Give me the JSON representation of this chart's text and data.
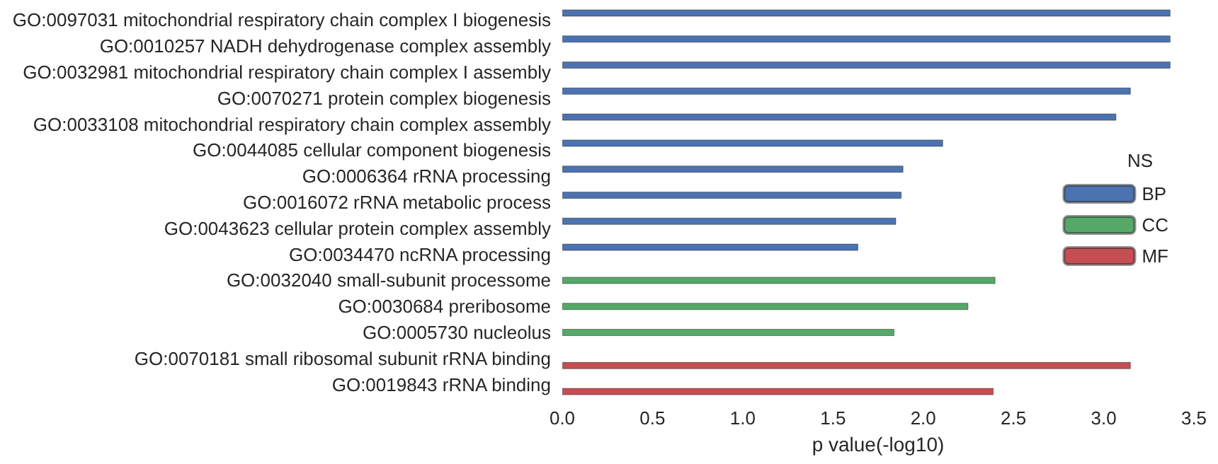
{
  "chart_data": {
    "type": "bar",
    "orientation": "horizontal",
    "xlabel": "p value(-log10)",
    "legend_title": "NS",
    "legend": "right",
    "grid": false,
    "categories": [
      "GO:0097031 mitochondrial respiratory chain complex I biogenesis",
      "GO:0010257 NADH dehydrogenase complex assembly",
      "GO:0032981 mitochondrial respiratory chain complex I assembly",
      "GO:0070271 protein complex biogenesis",
      "GO:0033108 mitochondrial respiratory chain complex assembly",
      "GO:0044085 cellular component biogenesis",
      "GO:0006364 rRNA processing",
      "GO:0016072 rRNA metabolic process",
      "GO:0043623 cellular protein complex assembly",
      "GO:0034470 ncRNA processing",
      "GO:0032040 small-subunit processome",
      "GO:0030684 preribosome",
      "GO:0005730 nucleolus",
      "GO:0070181 small ribosomal subunit rRNA binding",
      "GO:0019843 rRNA binding"
    ],
    "series": [
      {
        "name": "BP",
        "color": "#4c72b0",
        "values": [
          3.37,
          3.37,
          3.37,
          3.15,
          3.07,
          2.11,
          1.89,
          1.88,
          1.85,
          1.64,
          null,
          null,
          null,
          null,
          null
        ]
      },
      {
        "name": "CC",
        "color": "#55a868",
        "values": [
          null,
          null,
          null,
          null,
          null,
          null,
          null,
          null,
          null,
          null,
          2.4,
          2.25,
          1.84,
          null,
          null
        ]
      },
      {
        "name": "MF",
        "color": "#c44e52",
        "values": [
          null,
          null,
          null,
          null,
          null,
          null,
          null,
          null,
          null,
          null,
          null,
          null,
          null,
          3.15,
          2.39
        ]
      }
    ],
    "xlim": [
      0,
      3.5
    ],
    "xticks": [
      {
        "value": 0,
        "label": "0.0"
      },
      {
        "value": 0.5,
        "label": "0.5"
      },
      {
        "value": 1,
        "label": "1.0"
      },
      {
        "value": 1.5,
        "label": "1.5"
      },
      {
        "value": 2,
        "label": "2.0"
      },
      {
        "value": 2.5,
        "label": "2.5"
      },
      {
        "value": 3,
        "label": "3.0"
      },
      {
        "value": 3.5,
        "label": "3.5"
      }
    ]
  }
}
